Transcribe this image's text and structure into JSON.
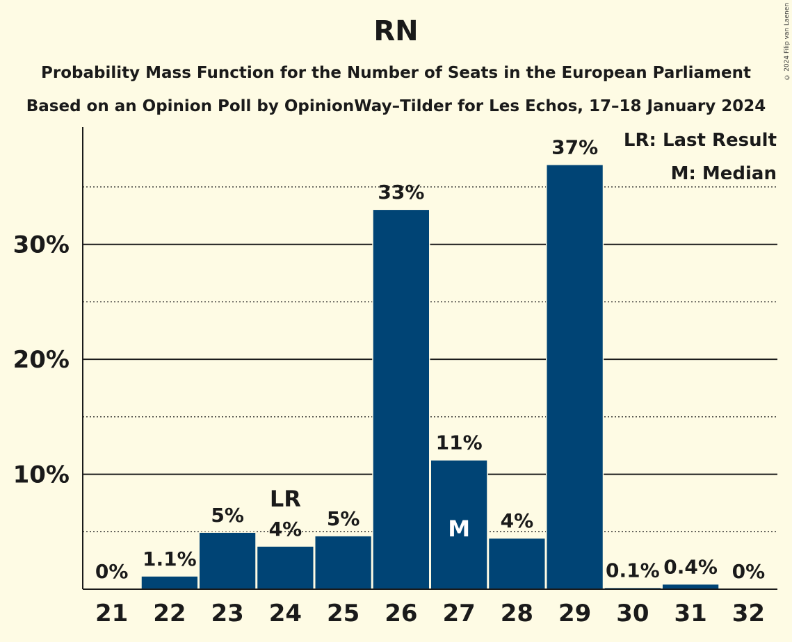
{
  "chart_data": {
    "type": "bar",
    "title": "RN",
    "subtitle": "Probability Mass Function for the Number of Seats in the European Parliament",
    "subtitle2": "Based on an Opinion Poll by OpinionWay–Tilder for Les Echos, 17–18 January 2024",
    "copyright": "© 2024 Filip van Laenen",
    "categories": [
      "21",
      "22",
      "23",
      "24",
      "25",
      "26",
      "27",
      "28",
      "29",
      "30",
      "31",
      "32"
    ],
    "values": [
      0,
      1.1,
      4.9,
      3.7,
      4.6,
      33,
      11.2,
      4.4,
      36.9,
      0.1,
      0.4,
      0
    ],
    "value_labels": [
      "0%",
      "1.1%",
      "5%",
      "4%",
      "5%",
      "33%",
      "11%",
      "4%",
      "37%",
      "0.1%",
      "0.4%",
      "0%"
    ],
    "ylim": [
      0,
      40.2
    ],
    "yticks": [
      10,
      20,
      30
    ],
    "ytick_labels": [
      "10%",
      "20%",
      "30%"
    ],
    "minor_gridlines": [
      5,
      15,
      25,
      35
    ],
    "last_result_category": "24",
    "median_category": "27",
    "last_result_marker": "LR",
    "median_marker": "M",
    "legend": [
      "LR: Last Result",
      "M: Median"
    ],
    "legend_position": "top-right",
    "colors": {
      "bar": "#004475",
      "background": "#fefbe4",
      "text": "#1a1a1a",
      "marker_on_bar": "#ffffff"
    }
  }
}
